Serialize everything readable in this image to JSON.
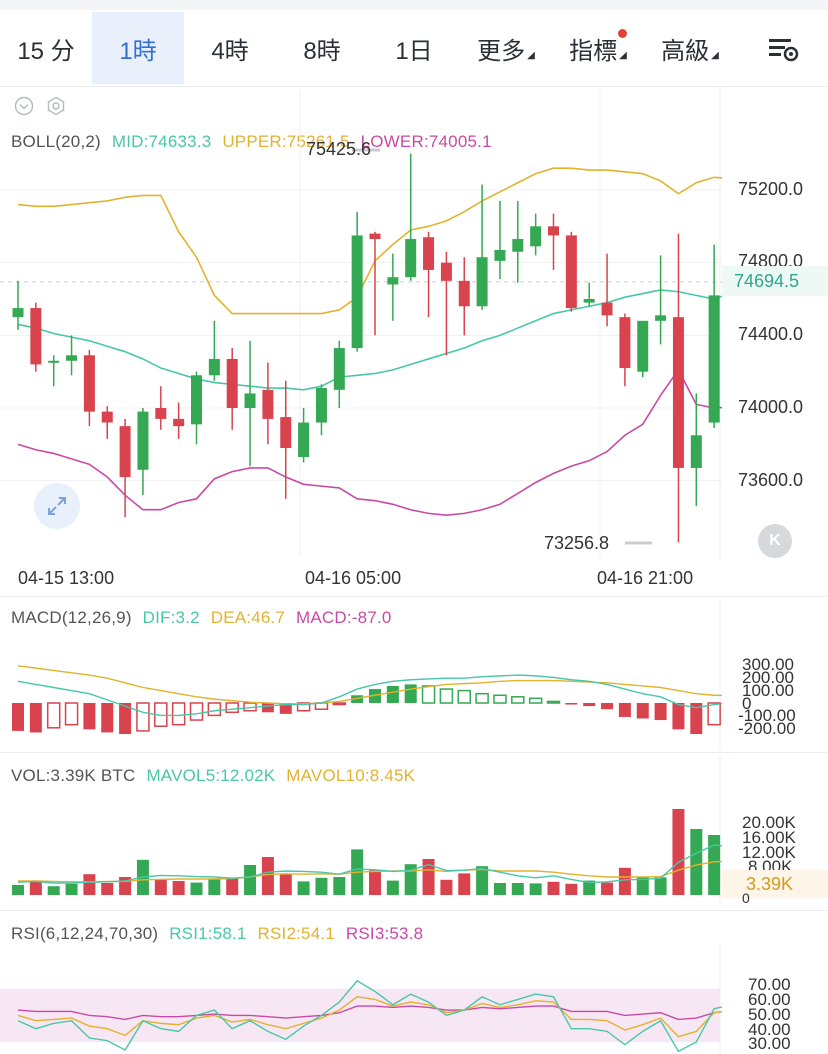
{
  "tabs": [
    {
      "label": "15 分",
      "active": false
    },
    {
      "label": "1時",
      "active": true
    },
    {
      "label": "4時",
      "active": false
    },
    {
      "label": "8時",
      "active": false
    },
    {
      "label": "1日",
      "active": false
    },
    {
      "label": "更多",
      "active": false,
      "dropdown": true
    },
    {
      "label": "指標",
      "active": false,
      "dropdown": true,
      "badge": true
    },
    {
      "label": "高級",
      "active": false,
      "dropdown": true
    }
  ],
  "colors": {
    "up": "#34a853",
    "down": "#d8434d",
    "mid": "#48c7a8",
    "upper": "#e3b22e",
    "lower": "#c94aa6",
    "accent": "#2f6fd6"
  },
  "boll": {
    "label": "BOLL(20,2)",
    "mid": "MID:74633.3",
    "upper": "UPPER:75261.5",
    "lower": "LOWER:74005.1"
  },
  "price_axis": [
    "75200.0",
    "74800.0",
    "74400.0",
    "74000.0",
    "73600.0"
  ],
  "current_price": "74694.5",
  "high_label": "75425.6",
  "low_label": "73256.8",
  "time_axis": [
    "04-15 13:00",
    "04-16 05:00",
    "04-16 21:00"
  ],
  "macd": {
    "label": "MACD(12,26,9)",
    "dif": "DIF:3.2",
    "dea": "DEA:46.7",
    "macd": "MACD:-87.0",
    "ticks": [
      "300.00",
      "200.00",
      "100.00",
      "0",
      "-100.00",
      "-200.00"
    ]
  },
  "vol": {
    "label": "VOL:3.39K BTC",
    "mavol5": "MAVOL5:12.02K",
    "mavol10": "MAVOL10:8.45K",
    "ticks": [
      "20.00K",
      "16.00K",
      "12.00K",
      "8.00K"
    ],
    "current": "3.39K",
    "zero": "0"
  },
  "rsi": {
    "label": "RSI(6,12,24,70,30)",
    "rsi1": "RSI1:58.1",
    "rsi2": "RSI2:54.1",
    "rsi3": "RSI3:53.8",
    "ticks": [
      "70.00",
      "60.00",
      "50.00",
      "40.00",
      "30.00"
    ]
  },
  "chart_data": {
    "type": "candlestick",
    "title": "",
    "ylim": [
      73200,
      75500
    ],
    "candles": [
      [
        74500,
        74700,
        74430,
        74550
      ],
      [
        74550,
        74580,
        74200,
        74240
      ],
      [
        74260,
        74290,
        74120,
        74260
      ],
      [
        74260,
        74400,
        74180,
        74290
      ],
      [
        74290,
        74320,
        73900,
        73980
      ],
      [
        73980,
        74010,
        73830,
        73920
      ],
      [
        73900,
        73940,
        73400,
        73620
      ],
      [
        73660,
        74000,
        73520,
        73980
      ],
      [
        74000,
        74120,
        73880,
        73940
      ],
      [
        73940,
        74030,
        73830,
        73900
      ],
      [
        73910,
        74200,
        73800,
        74180
      ],
      [
        74180,
        74480,
        74150,
        74270
      ],
      [
        74270,
        74330,
        73880,
        74000
      ],
      [
        74000,
        74370,
        73680,
        74080
      ],
      [
        74100,
        74250,
        73800,
        73940
      ],
      [
        73950,
        74150,
        73500,
        73780
      ],
      [
        73730,
        74000,
        73700,
        73920
      ],
      [
        73920,
        74130,
        73850,
        74110
      ],
      [
        74100,
        74370,
        74000,
        74330
      ],
      [
        74330,
        75080,
        74310,
        74950
      ],
      [
        74960,
        74970,
        74400,
        74930
      ],
      [
        74680,
        74850,
        74480,
        74720
      ],
      [
        74720,
        75400,
        74700,
        74930
      ],
      [
        74940,
        74970,
        74500,
        74760
      ],
      [
        74800,
        74860,
        74290,
        74700
      ],
      [
        74700,
        74830,
        74400,
        74560
      ],
      [
        74560,
        75230,
        74540,
        74830
      ],
      [
        74810,
        75140,
        74710,
        74870
      ],
      [
        74860,
        75140,
        74690,
        74930
      ],
      [
        74890,
        75070,
        74840,
        75000
      ],
      [
        75000,
        75070,
        74760,
        74950
      ],
      [
        74950,
        74970,
        74530,
        74550
      ],
      [
        74580,
        74690,
        74560,
        74600
      ],
      [
        74580,
        74850,
        74450,
        74510
      ],
      [
        74500,
        74520,
        74120,
        74220
      ],
      [
        74200,
        74460,
        74170,
        74480
      ],
      [
        74480,
        74840,
        74350,
        74510
      ],
      [
        74500,
        74960,
        73260,
        73670
      ],
      [
        73670,
        74080,
        73460,
        73850
      ],
      [
        73920,
        74900,
        73890,
        74620
      ],
      [
        74640,
        74910,
        74600,
        74694.5
      ]
    ],
    "mid": [
      74460,
      74440,
      74410,
      74390,
      74370,
      74340,
      74310,
      74270,
      74220,
      74190,
      74160,
      74140,
      74130,
      74120,
      74110,
      74110,
      74100,
      74120,
      74170,
      74180,
      74190,
      74210,
      74240,
      74270,
      74300,
      74330,
      74370,
      74400,
      74440,
      74480,
      74520,
      74540,
      74560,
      74580,
      74610,
      74630,
      74650,
      74640,
      74620,
      74600,
      74633.3
    ],
    "upper": [
      75120,
      75110,
      75110,
      75120,
      75130,
      75140,
      75160,
      75170,
      75170,
      74970,
      74830,
      74620,
      74520,
      74520,
      74520,
      74520,
      74520,
      74520,
      74540,
      74610,
      74810,
      74900,
      74980,
      75000,
      75030,
      75080,
      75140,
      75190,
      75240,
      75290,
      75320,
      75320,
      75310,
      75310,
      75300,
      75290,
      75250,
      75180,
      75240,
      75270,
      75261.5
    ],
    "lower": [
      73800,
      73770,
      73750,
      73720,
      73690,
      73620,
      73520,
      73440,
      73440,
      73480,
      73500,
      73610,
      73650,
      73670,
      73670,
      73620,
      73580,
      73570,
      73560,
      73500,
      73490,
      73470,
      73440,
      73420,
      73410,
      73420,
      73440,
      73470,
      73530,
      73590,
      73640,
      73680,
      73710,
      73760,
      73850,
      73910,
      74070,
      74210,
      74020,
      74000,
      74005.1
    ],
    "macd_hist": [
      -180,
      -190,
      -160,
      -140,
      -170,
      -190,
      -200,
      -180,
      -150,
      -140,
      -110,
      -80,
      -60,
      -50,
      -60,
      -70,
      -50,
      -40,
      -10,
      50,
      90,
      110,
      120,
      110,
      90,
      80,
      60,
      50,
      40,
      30,
      10,
      -10,
      -20,
      -40,
      -90,
      -100,
      -110,
      -170,
      -200,
      -140,
      -87
    ],
    "macd_dif": [
      140,
      120,
      100,
      80,
      60,
      20,
      -20,
      -60,
      -80,
      -80,
      -70,
      -50,
      -40,
      -30,
      -20,
      -10,
      -10,
      0,
      40,
      90,
      120,
      140,
      150,
      155,
      160,
      160,
      170,
      175,
      180,
      175,
      165,
      150,
      140,
      120,
      90,
      60,
      40,
      -10,
      -30,
      -10,
      3.2
    ],
    "macd_dea": [
      240,
      225,
      210,
      195,
      180,
      160,
      130,
      100,
      80,
      60,
      40,
      25,
      15,
      5,
      0,
      -5,
      -5,
      0,
      10,
      30,
      50,
      70,
      90,
      105,
      120,
      125,
      130,
      140,
      145,
      145,
      145,
      140,
      135,
      130,
      120,
      110,
      100,
      80,
      60,
      50,
      46.7
    ],
    "volume": [
      2.5,
      3.4,
      2.2,
      2.8,
      5.2,
      3.0,
      4.5,
      8.8,
      4.0,
      3.5,
      3.1,
      4.0,
      4.2,
      7.5,
      9.5,
      5.3,
      3.4,
      4.3,
      4.5,
      11.4,
      6.2,
      3.6,
      7.7,
      9.0,
      3.8,
      5.4,
      7.2,
      3.0,
      3.0,
      2.9,
      3.3,
      2.8,
      3.6,
      3.1,
      6.8,
      4.6,
      4.4,
      21.5,
      16.5,
      15.0,
      3.39
    ],
    "mavol5": [
      3.2,
      3.4,
      3.0,
      3.0,
      3.2,
      3.3,
      3.5,
      4.5,
      4.9,
      4.8,
      4.6,
      4.5,
      4.2,
      4.5,
      5.7,
      6.0,
      5.9,
      5.7,
      5.2,
      6.5,
      6.3,
      5.9,
      6.2,
      7.6,
      6.1,
      6.2,
      6.6,
      5.7,
      4.8,
      4.3,
      4.8,
      3.9,
      3.1,
      3.3,
      3.8,
      3.9,
      4.2,
      8.2,
      10.4,
      12.5,
      12.02
    ],
    "mavol10": [
      3.5,
      3.5,
      3.4,
      3.3,
      3.3,
      3.4,
      3.4,
      3.8,
      3.9,
      4.0,
      4.0,
      4.0,
      4.1,
      4.5,
      5.1,
      5.3,
      5.2,
      5.3,
      5.2,
      5.7,
      5.9,
      6.0,
      6.0,
      6.3,
      5.9,
      6.2,
      6.4,
      6.0,
      6.0,
      6.0,
      5.7,
      5.2,
      4.8,
      4.5,
      4.5,
      4.5,
      4.6,
      6.2,
      7.5,
      8.3,
      8.45
    ],
    "rsi1": [
      46,
      40,
      44,
      46,
      33,
      31,
      24,
      46,
      40,
      38,
      50,
      54,
      40,
      46,
      38,
      32,
      42,
      50,
      60,
      76,
      68,
      58,
      66,
      60,
      50,
      54,
      64,
      58,
      62,
      66,
      64,
      40,
      40,
      38,
      28,
      38,
      46,
      23,
      30,
      55,
      58.1
    ],
    "rsi2": [
      50,
      46,
      47,
      48,
      42,
      40,
      35,
      46,
      44,
      43,
      48,
      50,
      45,
      47,
      43,
      40,
      44,
      48,
      54,
      64,
      62,
      57,
      60,
      58,
      52,
      54,
      59,
      56,
      58,
      61,
      60,
      47,
      47,
      46,
      39,
      43,
      48,
      34,
      38,
      52,
      54.1
    ],
    "rsi3": [
      54,
      53,
      53,
      53,
      50,
      49,
      47,
      50,
      49,
      49,
      50,
      51,
      50,
      50,
      49,
      48,
      49,
      50,
      52,
      57,
      57,
      56,
      57,
      56,
      54,
      54,
      56,
      55,
      56,
      57,
      57,
      53,
      53,
      53,
      50,
      51,
      52,
      47,
      48,
      52,
      53.8
    ]
  }
}
